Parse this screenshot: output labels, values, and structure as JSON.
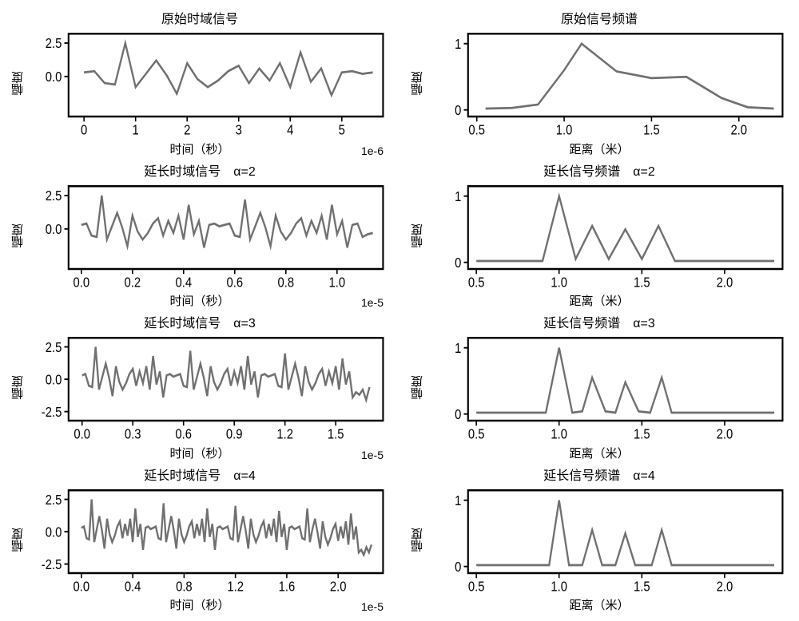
{
  "global": {
    "line_color": "#707070",
    "axis_color": "#000000",
    "bg_color": "#ffffff",
    "title_fontsize": 16,
    "label_fontsize": 15,
    "tick_fontsize": 14
  },
  "panels": [
    {
      "title": "原始时域信号",
      "ylabel": "幅度",
      "xlabel": "时间（秒）",
      "exponent": "1e-6",
      "type": "line",
      "xlim": [
        -0.3,
        5.8
      ],
      "ylim": [
        -3.0,
        3.2
      ],
      "xticks": [
        0,
        1,
        2,
        3,
        4,
        5
      ],
      "xtick_labels": [
        "0",
        "1",
        "2",
        "3",
        "4",
        "5"
      ],
      "yticks": [
        0.0,
        2.5
      ],
      "ytick_labels": [
        "0.0",
        "2.5"
      ],
      "data_x": [
        0,
        0.2,
        0.4,
        0.6,
        0.8,
        1.0,
        1.2,
        1.4,
        1.6,
        1.8,
        2.0,
        2.2,
        2.4,
        2.6,
        2.8,
        3.0,
        3.2,
        3.4,
        3.6,
        3.8,
        4.0,
        4.2,
        4.4,
        4.6,
        4.8,
        5.0,
        5.2,
        5.4,
        5.6
      ],
      "data_y": [
        0.3,
        0.4,
        -0.5,
        -0.6,
        2.5,
        -0.8,
        0.2,
        1.2,
        0.1,
        -1.3,
        1.0,
        -0.2,
        -0.8,
        -0.3,
        0.4,
        0.8,
        -0.5,
        0.6,
        -0.3,
        1.0,
        -0.8,
        1.8,
        -0.4,
        0.6,
        -1.4,
        0.3,
        0.4,
        0.2,
        0.3
      ]
    },
    {
      "title": "原始信号频谱",
      "ylabel": "幅度",
      "xlabel": "距离（米）",
      "exponent": "",
      "type": "line",
      "xlim": [
        0.45,
        2.25
      ],
      "ylim": [
        -0.1,
        1.15
      ],
      "xticks": [
        0.5,
        1.0,
        1.5,
        2.0
      ],
      "xtick_labels": [
        "0.5",
        "1.0",
        "1.5",
        "2.0"
      ],
      "yticks": [
        0,
        1
      ],
      "ytick_labels": [
        "0",
        "1"
      ],
      "data_x": [
        0.55,
        0.7,
        0.85,
        1.0,
        1.1,
        1.3,
        1.5,
        1.7,
        1.9,
        2.05,
        2.2
      ],
      "data_y": [
        0.02,
        0.03,
        0.08,
        0.6,
        1.0,
        0.58,
        0.48,
        0.5,
        0.18,
        0.04,
        0.02
      ]
    },
    {
      "title": "延长时域信号　α=2",
      "ylabel": "幅度",
      "xlabel": "时间（秒）",
      "exponent": "1e-5",
      "type": "line",
      "xlim": [
        -0.05,
        1.18
      ],
      "ylim": [
        -3.0,
        3.2
      ],
      "xticks": [
        0.0,
        0.2,
        0.4,
        0.6,
        0.8,
        1.0
      ],
      "xtick_labels": [
        "0.0",
        "0.2",
        "0.4",
        "0.6",
        "0.8",
        "1.0"
      ],
      "yticks": [
        0.0,
        2.5
      ],
      "ytick_labels": [
        "0.0",
        "2.5"
      ],
      "data_x": [
        0,
        0.02,
        0.04,
        0.06,
        0.08,
        0.1,
        0.12,
        0.14,
        0.16,
        0.18,
        0.2,
        0.22,
        0.24,
        0.26,
        0.28,
        0.3,
        0.32,
        0.34,
        0.36,
        0.38,
        0.4,
        0.42,
        0.44,
        0.46,
        0.48,
        0.5,
        0.52,
        0.54,
        0.56,
        0.58,
        0.6,
        0.62,
        0.64,
        0.66,
        0.68,
        0.7,
        0.72,
        0.74,
        0.76,
        0.78,
        0.8,
        0.82,
        0.84,
        0.86,
        0.88,
        0.9,
        0.92,
        0.94,
        0.96,
        0.98,
        1.0,
        1.02,
        1.04,
        1.06,
        1.08,
        1.1,
        1.12,
        1.14
      ],
      "data_y": [
        0.3,
        0.4,
        -0.5,
        -0.6,
        2.5,
        -0.8,
        0.2,
        1.2,
        0.1,
        -1.3,
        1.0,
        -0.2,
        -0.8,
        -0.3,
        0.4,
        0.8,
        -0.5,
        0.6,
        -0.3,
        1.0,
        -0.8,
        1.8,
        -0.4,
        0.6,
        -1.4,
        0.3,
        0.4,
        0.2,
        0.3,
        0.4,
        -0.5,
        -0.6,
        2.2,
        -0.8,
        0.2,
        1.2,
        0.1,
        -1.3,
        1.0,
        -0.2,
        -0.8,
        -0.3,
        0.4,
        0.8,
        -0.5,
        0.6,
        -0.3,
        1.0,
        -0.8,
        1.8,
        -0.4,
        0.6,
        -1.4,
        0.3,
        0.4,
        -0.6,
        -0.4,
        -0.3
      ]
    },
    {
      "title": "延长信号频谱　α=2",
      "ylabel": "幅度",
      "xlabel": "距离（米）",
      "exponent": "",
      "type": "line",
      "xlim": [
        0.45,
        2.35
      ],
      "ylim": [
        -0.1,
        1.15
      ],
      "xticks": [
        0.5,
        1.0,
        1.5,
        2.0
      ],
      "xtick_labels": [
        "0.5",
        "1.0",
        "1.5",
        "2.0"
      ],
      "yticks": [
        0,
        1
      ],
      "ytick_labels": [
        "0",
        "1"
      ],
      "data_x": [
        0.5,
        0.9,
        1.0,
        1.1,
        1.2,
        1.3,
        1.4,
        1.5,
        1.6,
        1.7,
        2.3
      ],
      "data_y": [
        0.02,
        0.02,
        1.0,
        0.05,
        0.55,
        0.05,
        0.5,
        0.05,
        0.55,
        0.02,
        0.02
      ]
    },
    {
      "title": "延长时域信号　α=3",
      "ylabel": "幅度",
      "xlabel": "时间（秒）",
      "exponent": "1e-5",
      "type": "line",
      "xlim": [
        -0.08,
        1.78
      ],
      "ylim": [
        -3.2,
        3.2
      ],
      "xticks": [
        0.0,
        0.3,
        0.6,
        0.9,
        1.2,
        1.5
      ],
      "xtick_labels": [
        "0.0",
        "0.3",
        "0.6",
        "0.9",
        "1.2",
        "1.5"
      ],
      "yticks": [
        -2.5,
        0.0,
        2.5
      ],
      "ytick_labels": [
        "-2.5",
        "0.0",
        "2.5"
      ],
      "data_x": [
        0,
        0.02,
        0.04,
        0.06,
        0.08,
        0.1,
        0.12,
        0.14,
        0.16,
        0.18,
        0.2,
        0.22,
        0.24,
        0.26,
        0.28,
        0.3,
        0.32,
        0.34,
        0.36,
        0.38,
        0.4,
        0.42,
        0.44,
        0.46,
        0.48,
        0.5,
        0.52,
        0.54,
        0.56,
        0.58,
        0.6,
        0.62,
        0.64,
        0.66,
        0.68,
        0.7,
        0.72,
        0.74,
        0.76,
        0.78,
        0.8,
        0.82,
        0.84,
        0.86,
        0.88,
        0.9,
        0.92,
        0.94,
        0.96,
        0.98,
        1.0,
        1.02,
        1.04,
        1.06,
        1.08,
        1.1,
        1.12,
        1.14,
        1.16,
        1.18,
        1.2,
        1.22,
        1.24,
        1.26,
        1.28,
        1.3,
        1.32,
        1.34,
        1.36,
        1.38,
        1.4,
        1.42,
        1.44,
        1.46,
        1.48,
        1.5,
        1.52,
        1.54,
        1.56,
        1.58,
        1.6,
        1.62,
        1.64,
        1.66,
        1.68,
        1.7
      ],
      "data_y": [
        0.3,
        0.4,
        -0.5,
        -0.6,
        2.5,
        -0.8,
        0.2,
        1.2,
        0.1,
        -1.3,
        1.0,
        -0.2,
        -0.8,
        -0.3,
        0.4,
        0.8,
        -0.5,
        0.6,
        -0.3,
        1.0,
        -0.8,
        1.8,
        -0.4,
        0.6,
        -1.4,
        0.3,
        0.4,
        0.2,
        0.3,
        0.4,
        -0.5,
        -0.6,
        2.2,
        -0.8,
        0.2,
        1.2,
        0.1,
        -1.3,
        1.0,
        -0.2,
        -0.8,
        -0.3,
        0.4,
        0.8,
        -0.5,
        0.6,
        -0.3,
        1.0,
        -0.8,
        1.8,
        -0.4,
        0.6,
        -1.4,
        0.3,
        0.4,
        0.2,
        0.3,
        0.4,
        -0.5,
        -0.6,
        2.0,
        -0.8,
        0.2,
        1.2,
        0.1,
        -1.3,
        1.0,
        -0.2,
        -0.8,
        -0.3,
        0.4,
        0.8,
        -0.5,
        0.6,
        -0.3,
        1.0,
        -0.8,
        1.6,
        -0.4,
        0.6,
        -1.4,
        -1.0,
        -1.2,
        -0.8,
        -1.6,
        -0.6
      ]
    },
    {
      "title": "延长信号频谱　α=3",
      "ylabel": "幅度",
      "xlabel": "距离（米）",
      "exponent": "",
      "type": "line",
      "xlim": [
        0.45,
        2.35
      ],
      "ylim": [
        -0.1,
        1.15
      ],
      "xticks": [
        0.5,
        1.0,
        1.5,
        2.0
      ],
      "xtick_labels": [
        "0.5",
        "1.0",
        "1.5",
        "2.0"
      ],
      "yticks": [
        0,
        1
      ],
      "ytick_labels": [
        "0",
        "1"
      ],
      "data_x": [
        0.5,
        0.92,
        1.0,
        1.08,
        1.14,
        1.2,
        1.28,
        1.34,
        1.4,
        1.48,
        1.55,
        1.62,
        1.68,
        1.75,
        2.3
      ],
      "data_y": [
        0.02,
        0.02,
        1.0,
        0.02,
        0.04,
        0.55,
        0.04,
        0.02,
        0.48,
        0.04,
        0.02,
        0.55,
        0.02,
        0.02,
        0.02
      ]
    },
    {
      "title": "延长时域信号　α=4",
      "ylabel": "幅度",
      "xlabel": "时间（秒）",
      "exponent": "1e-5",
      "type": "line",
      "xlim": [
        -0.1,
        2.35
      ],
      "ylim": [
        -3.2,
        3.2
      ],
      "xticks": [
        0.0,
        0.4,
        0.8,
        1.2,
        1.6,
        2.0
      ],
      "xtick_labels": [
        "0.0",
        "0.4",
        "0.8",
        "1.2",
        "1.6",
        "2.0"
      ],
      "yticks": [
        -2.5,
        0.0,
        2.5
      ],
      "ytick_labels": [
        "-2.5",
        "0.0",
        "2.5"
      ],
      "data_x": [
        0,
        0.02,
        0.04,
        0.06,
        0.08,
        0.1,
        0.12,
        0.14,
        0.16,
        0.18,
        0.2,
        0.22,
        0.24,
        0.26,
        0.28,
        0.3,
        0.32,
        0.34,
        0.36,
        0.38,
        0.4,
        0.42,
        0.44,
        0.46,
        0.48,
        0.5,
        0.52,
        0.54,
        0.56,
        0.58,
        0.6,
        0.62,
        0.64,
        0.66,
        0.68,
        0.7,
        0.72,
        0.74,
        0.76,
        0.78,
        0.8,
        0.82,
        0.84,
        0.86,
        0.88,
        0.9,
        0.92,
        0.94,
        0.96,
        0.98,
        1.0,
        1.02,
        1.04,
        1.06,
        1.08,
        1.1,
        1.12,
        1.14,
        1.16,
        1.18,
        1.2,
        1.22,
        1.24,
        1.26,
        1.28,
        1.3,
        1.32,
        1.34,
        1.36,
        1.38,
        1.4,
        1.42,
        1.44,
        1.46,
        1.48,
        1.5,
        1.52,
        1.54,
        1.56,
        1.58,
        1.6,
        1.62,
        1.64,
        1.66,
        1.68,
        1.7,
        1.72,
        1.74,
        1.76,
        1.78,
        1.8,
        1.82,
        1.84,
        1.86,
        1.88,
        1.9,
        1.92,
        1.94,
        1.96,
        1.98,
        2.0,
        2.02,
        2.04,
        2.06,
        2.08,
        2.1,
        2.12,
        2.14,
        2.16,
        2.18,
        2.2,
        2.22,
        2.24,
        2.26
      ],
      "data_y": [
        0.3,
        0.4,
        -0.5,
        -0.6,
        2.5,
        -0.8,
        0.2,
        1.2,
        0.1,
        -1.3,
        1.0,
        -0.2,
        -0.8,
        -0.3,
        0.4,
        0.8,
        -0.5,
        0.6,
        -0.3,
        1.0,
        -0.8,
        1.8,
        -0.4,
        0.6,
        -1.4,
        0.3,
        0.4,
        0.2,
        0.3,
        0.4,
        -0.5,
        -0.6,
        2.2,
        -0.8,
        0.2,
        1.2,
        0.1,
        -1.3,
        1.0,
        -0.2,
        -0.8,
        -0.3,
        0.4,
        0.8,
        -0.5,
        0.6,
        -0.3,
        1.0,
        -0.8,
        1.8,
        -0.4,
        0.6,
        -1.4,
        0.3,
        0.4,
        0.2,
        0.3,
        0.4,
        -0.5,
        -0.6,
        2.0,
        -0.8,
        0.2,
        1.2,
        0.1,
        -1.3,
        1.0,
        -0.2,
        -0.8,
        -0.3,
        0.4,
        0.8,
        -0.5,
        0.6,
        -0.3,
        1.0,
        -0.8,
        1.6,
        -0.4,
        0.6,
        -1.4,
        0.3,
        0.4,
        0.2,
        0.3,
        0.4,
        -0.5,
        -0.6,
        1.8,
        -0.8,
        0.2,
        1.0,
        -0.1,
        -1.3,
        0.8,
        -0.4,
        -1.0,
        -0.5,
        0.2,
        0.6,
        -0.7,
        0.4,
        -0.5,
        0.8,
        -1.0,
        1.4,
        -0.6,
        0.4,
        -1.6,
        -1.4,
        -1.8,
        -1.2,
        -1.6,
        -1.0
      ]
    },
    {
      "title": "延长信号频谱　α=4",
      "ylabel": "幅度",
      "xlabel": "距离（米）",
      "exponent": "",
      "type": "line",
      "xlim": [
        0.45,
        2.35
      ],
      "ylim": [
        -0.1,
        1.15
      ],
      "xticks": [
        0.5,
        1.0,
        1.5,
        2.0
      ],
      "xtick_labels": [
        "0.5",
        "1.0",
        "1.5",
        "2.0"
      ],
      "yticks": [
        0,
        1
      ],
      "ytick_labels": [
        "0",
        "1"
      ],
      "data_x": [
        0.5,
        0.94,
        1.0,
        1.06,
        1.14,
        1.2,
        1.26,
        1.34,
        1.4,
        1.46,
        1.56,
        1.62,
        1.68,
        1.76,
        2.3
      ],
      "data_y": [
        0.02,
        0.02,
        1.0,
        0.02,
        0.02,
        0.55,
        0.02,
        0.02,
        0.5,
        0.02,
        0.02,
        0.55,
        0.02,
        0.02,
        0.02
      ]
    }
  ]
}
